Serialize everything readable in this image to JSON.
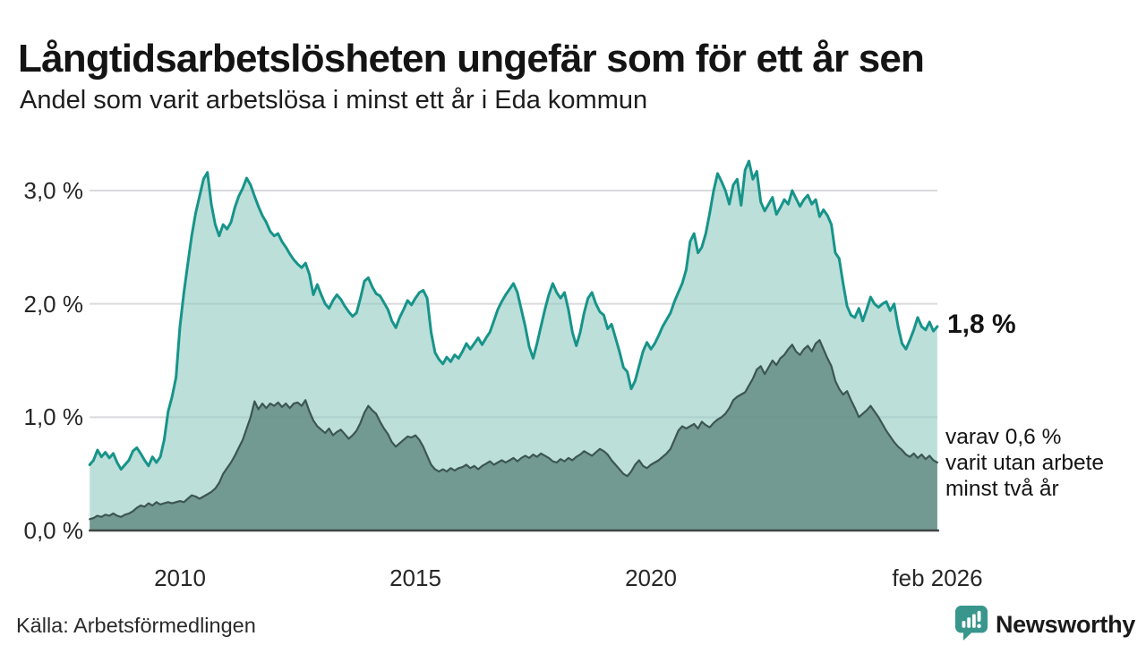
{
  "header": {
    "title": "Långtidsarbetslösheten ungefär som för ett år sen",
    "subtitle": "Andel som varit arbetslösa i minst ett år i Eda kommun"
  },
  "footer": {
    "source": "Källa: Arbetsförmedlingen",
    "logo_text": "Newsworthy",
    "logo_color": "#38968c"
  },
  "annotations": {
    "end_value_label": "1,8 %",
    "secondary_line1": "varav 0,6 %",
    "secondary_line2": "varit utan arbete",
    "secondary_line3": "minst två år"
  },
  "colors": {
    "accent_teal_line": "#17948a",
    "light_area_fill": "rgba(143,202,194,0.6)",
    "dark_series_line": "#3d5651",
    "dark_area_fill": "rgba(95,136,129,0.8)",
    "gridline": "#d9d9de",
    "axis_baseline": "#3f4543",
    "title_text": "#141414"
  },
  "chart_data": {
    "type": "area",
    "title": "Långtidsarbetslösheten ungefär som för ett år sen",
    "subtitle": "Andel som varit arbetslösa i minst ett år i Eda kommun",
    "grid": "horizontal-only",
    "x_axis": {
      "ticks": [
        {
          "label": "2010",
          "year": 2010
        },
        {
          "label": "2015",
          "year": 2015
        },
        {
          "label": "2020",
          "year": 2020
        },
        {
          "label": "feb 2026",
          "year": 2026.083
        }
      ],
      "range": [
        2008.083,
        2026.083
      ]
    },
    "y_axis": {
      "unit": "%",
      "range": [
        0,
        3.3
      ],
      "ticks": [
        {
          "label": "0,0 %",
          "value": 0
        },
        {
          "label": "1,0 %",
          "value": 1
        },
        {
          "label": "2,0 %",
          "value": 2
        },
        {
          "label": "3,0 %",
          "value": 3
        }
      ]
    },
    "series": [
      {
        "name": "Andel arbetslösa minst ett år",
        "end_label": "1,8 %",
        "end_value": 1.8,
        "line_color": "#17948a",
        "fill_color": "rgba(143,202,194,0.6)",
        "line_width": 3,
        "x_start": 2008.083,
        "x_step": 0.08333,
        "values": [
          0.58,
          0.62,
          0.71,
          0.65,
          0.69,
          0.64,
          0.68,
          0.6,
          0.54,
          0.58,
          0.62,
          0.7,
          0.73,
          0.68,
          0.62,
          0.57,
          0.65,
          0.6,
          0.65,
          0.8,
          1.05,
          1.18,
          1.35,
          1.8,
          2.1,
          2.35,
          2.6,
          2.8,
          2.95,
          3.1,
          3.16,
          2.88,
          2.7,
          2.6,
          2.7,
          2.66,
          2.72,
          2.85,
          2.95,
          3.02,
          3.11,
          3.05,
          2.95,
          2.86,
          2.78,
          2.72,
          2.64,
          2.6,
          2.62,
          2.55,
          2.5,
          2.44,
          2.39,
          2.35,
          2.32,
          2.36,
          2.26,
          2.08,
          2.17,
          2.08,
          2.0,
          1.96,
          2.03,
          2.08,
          2.04,
          1.98,
          1.93,
          1.89,
          1.92,
          2.05,
          2.2,
          2.23,
          2.15,
          2.09,
          2.07,
          2.01,
          1.95,
          1.85,
          1.79,
          1.88,
          1.95,
          2.03,
          1.99,
          2.05,
          2.1,
          2.12,
          2.05,
          1.75,
          1.57,
          1.51,
          1.47,
          1.53,
          1.49,
          1.55,
          1.52,
          1.58,
          1.65,
          1.6,
          1.65,
          1.7,
          1.64,
          1.7,
          1.75,
          1.85,
          1.95,
          2.02,
          2.08,
          2.13,
          2.18,
          2.1,
          1.95,
          1.8,
          1.62,
          1.52,
          1.65,
          1.8,
          1.95,
          2.08,
          2.18,
          2.1,
          2.05,
          2.1,
          1.95,
          1.75,
          1.63,
          1.75,
          1.92,
          2.05,
          2.1,
          2.0,
          1.93,
          1.9,
          1.78,
          1.82,
          1.7,
          1.58,
          1.44,
          1.4,
          1.25,
          1.32,
          1.45,
          1.58,
          1.66,
          1.6,
          1.65,
          1.72,
          1.8,
          1.86,
          1.92,
          2.02,
          2.1,
          2.18,
          2.3,
          2.55,
          2.62,
          2.45,
          2.5,
          2.62,
          2.8,
          3.0,
          3.15,
          3.08,
          3.0,
          2.88,
          3.05,
          3.1,
          2.87,
          3.18,
          3.26,
          3.1,
          3.17,
          2.9,
          2.82,
          2.88,
          2.94,
          2.79,
          2.85,
          2.92,
          2.88,
          3.0,
          2.93,
          2.86,
          2.92,
          2.96,
          2.88,
          2.92,
          2.77,
          2.83,
          2.78,
          2.7,
          2.45,
          2.4,
          2.18,
          1.98,
          1.9,
          1.88,
          1.96,
          1.85,
          1.95,
          2.06,
          2.0,
          1.97,
          2.0,
          2.02,
          1.94,
          2.0,
          1.8,
          1.65,
          1.6,
          1.68,
          1.77,
          1.88,
          1.8,
          1.77,
          1.84,
          1.76,
          1.8
        ]
      },
      {
        "name": "varav utan arbete minst två år",
        "end_label": "0,6 %",
        "end_value": 0.6,
        "line_color": "#3d5651",
        "fill_color": "rgba(95,136,129,0.8)",
        "line_width": 2.2,
        "x_start": 2008.083,
        "x_step": 0.08333,
        "values": [
          0.1,
          0.11,
          0.13,
          0.12,
          0.14,
          0.13,
          0.15,
          0.13,
          0.12,
          0.14,
          0.15,
          0.17,
          0.2,
          0.22,
          0.21,
          0.24,
          0.22,
          0.25,
          0.23,
          0.24,
          0.25,
          0.24,
          0.25,
          0.26,
          0.25,
          0.28,
          0.31,
          0.3,
          0.28,
          0.3,
          0.32,
          0.34,
          0.37,
          0.42,
          0.5,
          0.55,
          0.6,
          0.66,
          0.73,
          0.8,
          0.9,
          1.0,
          1.14,
          1.07,
          1.12,
          1.08,
          1.12,
          1.1,
          1.13,
          1.09,
          1.12,
          1.08,
          1.12,
          1.13,
          1.1,
          1.15,
          1.05,
          0.97,
          0.92,
          0.89,
          0.86,
          0.9,
          0.84,
          0.87,
          0.89,
          0.85,
          0.81,
          0.84,
          0.88,
          0.95,
          1.04,
          1.1,
          1.06,
          1.03,
          0.96,
          0.9,
          0.85,
          0.78,
          0.74,
          0.77,
          0.8,
          0.83,
          0.82,
          0.84,
          0.8,
          0.74,
          0.66,
          0.58,
          0.54,
          0.52,
          0.54,
          0.52,
          0.55,
          0.53,
          0.55,
          0.56,
          0.58,
          0.55,
          0.57,
          0.54,
          0.57,
          0.59,
          0.61,
          0.58,
          0.6,
          0.62,
          0.6,
          0.62,
          0.64,
          0.61,
          0.64,
          0.66,
          0.64,
          0.67,
          0.65,
          0.68,
          0.66,
          0.64,
          0.61,
          0.6,
          0.63,
          0.61,
          0.64,
          0.62,
          0.65,
          0.67,
          0.7,
          0.68,
          0.66,
          0.69,
          0.72,
          0.7,
          0.67,
          0.62,
          0.58,
          0.54,
          0.5,
          0.48,
          0.52,
          0.58,
          0.62,
          0.57,
          0.55,
          0.58,
          0.6,
          0.62,
          0.65,
          0.68,
          0.72,
          0.8,
          0.88,
          0.92,
          0.9,
          0.92,
          0.94,
          0.9,
          0.96,
          0.93,
          0.91,
          0.95,
          0.98,
          1.0,
          1.03,
          1.08,
          1.15,
          1.18,
          1.2,
          1.22,
          1.28,
          1.34,
          1.42,
          1.45,
          1.38,
          1.44,
          1.5,
          1.46,
          1.52,
          1.55,
          1.6,
          1.64,
          1.58,
          1.55,
          1.6,
          1.63,
          1.58,
          1.65,
          1.68,
          1.6,
          1.52,
          1.45,
          1.32,
          1.25,
          1.2,
          1.23,
          1.15,
          1.08,
          1.0,
          1.03,
          1.06,
          1.1,
          1.05,
          1.0,
          0.94,
          0.88,
          0.83,
          0.78,
          0.74,
          0.71,
          0.67,
          0.65,
          0.68,
          0.64,
          0.67,
          0.63,
          0.66,
          0.62,
          0.6
        ]
      }
    ]
  }
}
